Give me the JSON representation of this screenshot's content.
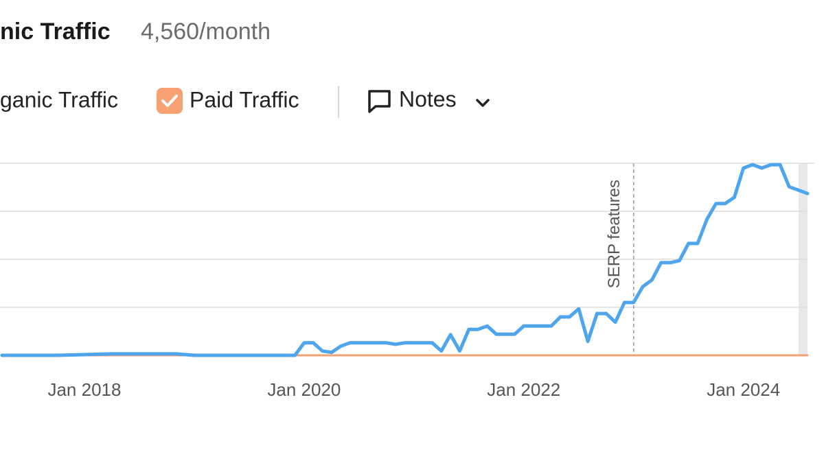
{
  "chart_data": {
    "type": "line",
    "title": "nic Traffic",
    "subtitle": "4,560/month",
    "notes_button": "Notes",
    "x": [
      "2017-04",
      "2017-10",
      "2018-04",
      "2018-06",
      "2018-11",
      "2019-01",
      "2019-06",
      "2019-12",
      "2020-01",
      "2020-02",
      "2020-03",
      "2020-04",
      "2020-05",
      "2020-06",
      "2020-07",
      "2020-08",
      "2020-09",
      "2020-10",
      "2020-11",
      "2020-12",
      "2021-01",
      "2021-02",
      "2021-03",
      "2021-04",
      "2021-05",
      "2021-06",
      "2021-07",
      "2021-08",
      "2021-09",
      "2021-10",
      "2021-11",
      "2021-12",
      "2022-01",
      "2022-02",
      "2022-03",
      "2022-04",
      "2022-05",
      "2022-06",
      "2022-07",
      "2022-08",
      "2022-09",
      "2022-10",
      "2022-11",
      "2022-12",
      "2023-01",
      "2023-02",
      "2023-03",
      "2023-04",
      "2023-05",
      "2023-06",
      "2023-07",
      "2023-08",
      "2023-09",
      "2023-10",
      "2023-11",
      "2023-12",
      "2024-01",
      "2024-02",
      "2024-03",
      "2024-04",
      "2024-05",
      "2024-06",
      "2024-07",
      "2024-08"
    ],
    "series": [
      {
        "name": "Paid Traffic",
        "color": "#f7a072",
        "values": [
          0,
          0,
          0,
          0,
          0,
          0,
          0,
          0,
          0,
          0,
          0,
          0,
          0,
          0,
          0,
          0,
          0,
          0,
          0,
          0,
          0,
          0,
          0,
          0,
          0,
          0,
          0,
          0,
          0,
          0,
          0,
          0,
          0,
          0,
          0,
          0,
          0,
          0,
          0,
          0,
          0,
          0,
          0,
          0,
          0,
          0,
          0,
          0,
          0,
          0,
          0,
          0,
          0,
          0,
          0,
          0,
          0,
          0,
          0,
          0,
          0,
          0,
          0,
          0
        ]
      },
      {
        "name": "ganic Traffic",
        "color": "#4ea5ec",
        "values": [
          0,
          0,
          0.03,
          0.03,
          0.03,
          0,
          0,
          0,
          0.26,
          0.26,
          0.09,
          0.06,
          0.19,
          0.26,
          0.26,
          0.26,
          0.26,
          0.26,
          0.23,
          0.26,
          0.26,
          0.26,
          0.26,
          0.09,
          0.43,
          0.09,
          0.54,
          0.54,
          0.61,
          0.44,
          0.44,
          0.44,
          0.61,
          0.61,
          0.61,
          0.61,
          0.8,
          0.8,
          0.97,
          0.29,
          0.87,
          0.87,
          0.69,
          1.1,
          1.1,
          1.43,
          1.57,
          1.93,
          1.93,
          1.97,
          2.33,
          2.33,
          2.83,
          3.16,
          3.16,
          3.29,
          3.9,
          3.97,
          3.9,
          3.97,
          3.97,
          3.51,
          3.44,
          3.37
        ]
      }
    ],
    "xlim": [
      "2017-04",
      "2024-08"
    ],
    "xticks": [
      {
        "value": "2018-01",
        "label": "Jan 2018"
      },
      {
        "value": "2020-01",
        "label": "Jan 2020"
      },
      {
        "value": "2022-01",
        "label": "Jan 2022"
      },
      {
        "value": "2024-01",
        "label": "Jan 2024"
      }
    ],
    "ylim": [
      0,
      4
    ],
    "yticks": [
      0,
      1,
      2,
      3,
      4
    ],
    "grid": true,
    "annotations": [
      {
        "text": "SERP features",
        "x": "2023-01"
      }
    ]
  }
}
